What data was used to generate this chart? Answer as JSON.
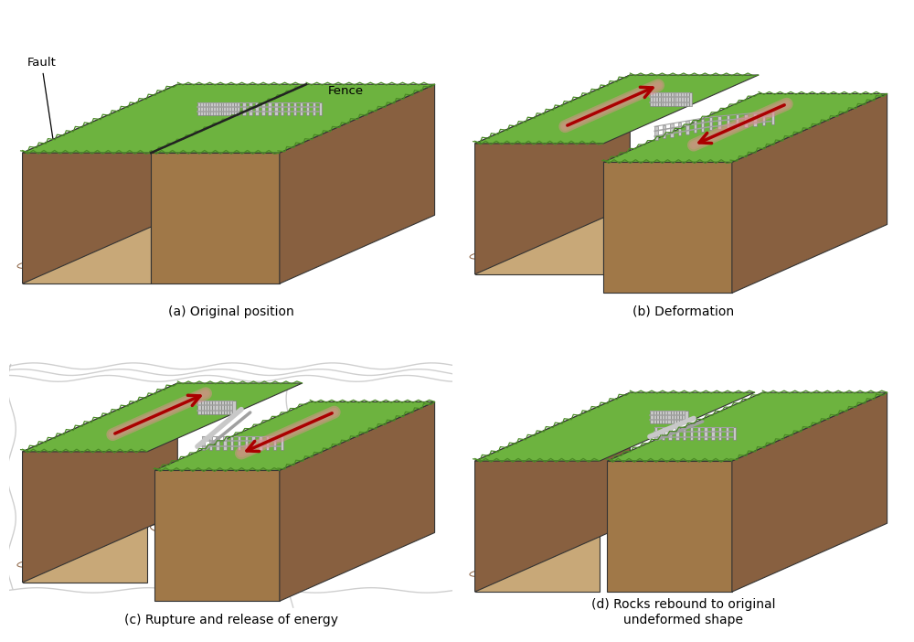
{
  "panels": [
    {
      "label": "(a) Original position",
      "id": "a"
    },
    {
      "label": "(b) Deformation",
      "id": "b"
    },
    {
      "label": "(c) Rupture and release of energy",
      "id": "c"
    },
    {
      "label": "(d) Rocks rebound to original\nundeformed shape",
      "id": "d"
    }
  ],
  "colors": {
    "grass": "#6db33f",
    "grass_edge": "#4a8a25",
    "soil_front_light": "#c8a878",
    "soil_front_dark": "#a07848",
    "soil_side_light": "#b09060",
    "soil_side_dark": "#886040",
    "outline": "#333333",
    "fence_light": "#c8c8c8",
    "fence_mid": "#a0a0a0",
    "fence_dark": "#787878",
    "arrow_red": "#aa0000",
    "arrow_pink": "#dd9090",
    "seismic": "#bbbbbb",
    "bg": "#ffffff",
    "fault_line": "#222222"
  },
  "fault_label": "Fault",
  "fence_label": "Fence"
}
